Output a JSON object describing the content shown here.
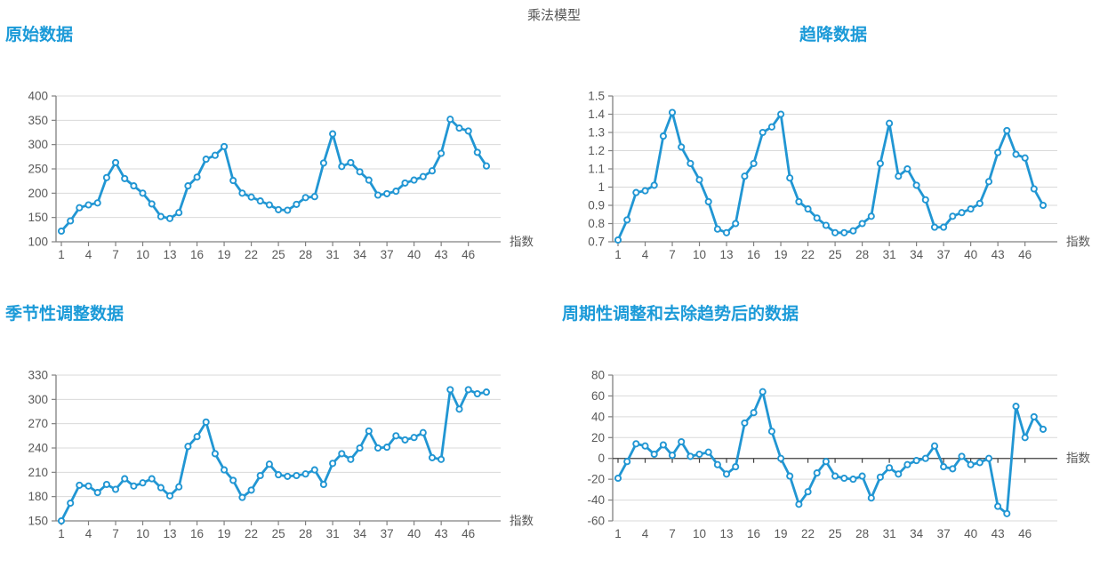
{
  "page_title": "乘法模型",
  "colors": {
    "accent": "#1b9ad8",
    "line": "#2196d3",
    "marker_fill": "#ffffff",
    "grid": "#d9d9d9",
    "axis": "#808080",
    "zero_axis": "#404040",
    "tick_label": "#595959",
    "page_title": "#595959"
  },
  "chart_data": [
    {
      "type": "line",
      "title": "原始数据",
      "title_align": "left",
      "xlabel": "指数",
      "x_start": 1,
      "x_step": 1,
      "x_ticks": [
        1,
        4,
        7,
        10,
        13,
        16,
        19,
        22,
        25,
        28,
        31,
        34,
        37,
        40,
        43,
        46
      ],
      "ylim": [
        100,
        400
      ],
      "y_tick_labels": [
        "400",
        "350",
        "300",
        "250",
        "200",
        "150",
        "100"
      ],
      "zero_axis": false,
      "grid": true,
      "legend": "none",
      "values": [
        122,
        143,
        170,
        176,
        180,
        232,
        263,
        230,
        215,
        200,
        178,
        152,
        148,
        160,
        215,
        233,
        270,
        278,
        296,
        226,
        200,
        192,
        184,
        176,
        166,
        165,
        177,
        191,
        193,
        262,
        322,
        255,
        263,
        244,
        227,
        196,
        199,
        204,
        221,
        227,
        234,
        246,
        282,
        352,
        334,
        328,
        284,
        256
      ]
    },
    {
      "type": "line",
      "title": "趋降数据",
      "title_align": "center",
      "xlabel": "指数",
      "x_start": 1,
      "x_step": 1,
      "x_ticks": [
        1,
        4,
        7,
        10,
        13,
        16,
        19,
        22,
        25,
        28,
        31,
        34,
        37,
        40,
        43,
        46
      ],
      "ylim": [
        0.7,
        1.5
      ],
      "y_tick_labels": [
        "1.5",
        "1.4",
        "1.3",
        "1.2",
        "1.1",
        "1",
        "0.9",
        "0.8",
        "0.7"
      ],
      "zero_axis": false,
      "grid": true,
      "legend": "none",
      "values": [
        0.71,
        0.82,
        0.97,
        0.98,
        1.01,
        1.28,
        1.41,
        1.22,
        1.13,
        1.04,
        0.92,
        0.77,
        0.75,
        0.8,
        1.06,
        1.13,
        1.3,
        1.33,
        1.4,
        1.05,
        0.92,
        0.88,
        0.83,
        0.79,
        0.75,
        0.75,
        0.76,
        0.8,
        0.84,
        1.13,
        1.35,
        1.06,
        1.1,
        1.01,
        0.93,
        0.78,
        0.78,
        0.84,
        0.86,
        0.88,
        0.91,
        1.03,
        1.19,
        1.31,
        1.18,
        1.16,
        0.99,
        0.9
      ]
    },
    {
      "type": "line",
      "title": "季节性调整数据",
      "title_align": "left",
      "xlabel": "指数",
      "x_start": 1,
      "x_step": 1,
      "x_ticks": [
        1,
        4,
        7,
        10,
        13,
        16,
        19,
        22,
        25,
        28,
        31,
        34,
        37,
        40,
        43,
        46
      ],
      "ylim": [
        150,
        330
      ],
      "y_tick_labels": [
        "330",
        "300",
        "270",
        "240",
        "210",
        "180",
        "150"
      ],
      "zero_axis": false,
      "grid": true,
      "legend": "none",
      "values": [
        150,
        172,
        194,
        193,
        185,
        195,
        189,
        202,
        193,
        197,
        202,
        191,
        181,
        192,
        242,
        254,
        272,
        233,
        213,
        200,
        179,
        188,
        206,
        220,
        207,
        205,
        206,
        208,
        213,
        195,
        221,
        233,
        226,
        240,
        261,
        240,
        241,
        255,
        250,
        253,
        259,
        228,
        226,
        312,
        288,
        312,
        307,
        309
      ]
    },
    {
      "type": "line",
      "title": "周期性调整和去除趋势后的数据",
      "title_align": "left",
      "xlabel": "指数",
      "x_start": 1,
      "x_step": 1,
      "x_ticks": [
        1,
        4,
        7,
        10,
        13,
        16,
        19,
        22,
        25,
        28,
        31,
        34,
        37,
        40,
        43,
        46
      ],
      "ylim": [
        -60,
        80
      ],
      "y_tick_labels": [
        "80",
        "60",
        "40",
        "20",
        "0",
        "-20",
        "-40",
        "-60"
      ],
      "zero_axis": true,
      "grid": true,
      "legend": "none",
      "values": [
        -19,
        -3,
        14,
        12,
        4,
        13,
        3,
        16,
        2,
        4,
        6,
        -6,
        -15,
        -8,
        34,
        44,
        64,
        26,
        0,
        -17,
        -44,
        -32,
        -14,
        -3,
        -17,
        -19,
        -20,
        -17,
        -38,
        -18,
        -9,
        -15,
        -6,
        -2,
        0,
        12,
        -8,
        -10,
        2,
        -6,
        -4,
        0,
        -46,
        -53,
        50,
        20,
        40,
        28
      ]
    }
  ]
}
